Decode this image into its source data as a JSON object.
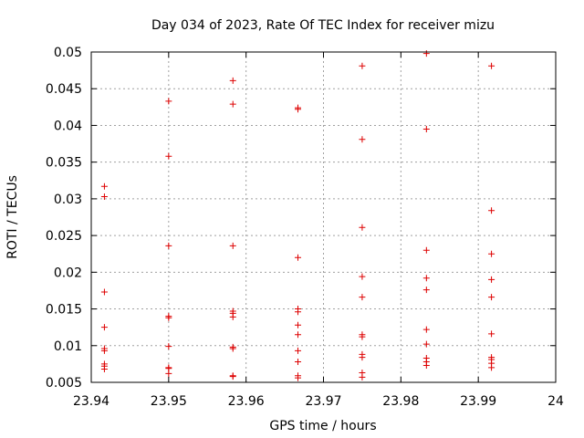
{
  "chart_data": {
    "type": "scatter",
    "title": "Day 034 of 2023, Rate Of TEC Index for receiver mizu",
    "xlabel": "GPS time / hours",
    "ylabel": "ROTI / TECUs",
    "xlim": [
      23.94,
      24.0
    ],
    "ylim": [
      0.005,
      0.05
    ],
    "grid": true,
    "marker": "+",
    "color": "#dd0000",
    "x_tick_labels": [
      "23.94",
      "23.95",
      "23.96",
      "23.97",
      "23.98",
      "23.99",
      "24"
    ],
    "x_ticks": [
      23.94,
      23.95,
      23.96,
      23.97,
      23.98,
      23.99,
      24.0
    ],
    "y_tick_labels": [
      "0.005",
      "0.01",
      "0.015",
      "0.02",
      "0.025",
      "0.03",
      "0.035",
      "0.04",
      "0.045",
      "0.05"
    ],
    "y_ticks": [
      0.005,
      0.01,
      0.015,
      0.02,
      0.025,
      0.03,
      0.035,
      0.04,
      0.045,
      0.05
    ],
    "series": [
      {
        "name": "ROTI",
        "points": [
          [
            23.9417,
            0.0317
          ],
          [
            23.9417,
            0.0303
          ],
          [
            23.9417,
            0.0173
          ],
          [
            23.9417,
            0.0125
          ],
          [
            23.9417,
            0.0096
          ],
          [
            23.9417,
            0.0093
          ],
          [
            23.9417,
            0.0075
          ],
          [
            23.9417,
            0.0072
          ],
          [
            23.9417,
            0.0068
          ],
          [
            23.95,
            0.0433
          ],
          [
            23.95,
            0.0358
          ],
          [
            23.95,
            0.0236
          ],
          [
            23.95,
            0.014
          ],
          [
            23.95,
            0.0138
          ],
          [
            23.95,
            0.0099
          ],
          [
            23.95,
            0.007
          ],
          [
            23.95,
            0.0069
          ],
          [
            23.95,
            0.0062
          ],
          [
            23.9583,
            0.0461
          ],
          [
            23.9583,
            0.0429
          ],
          [
            23.9583,
            0.0236
          ],
          [
            23.9583,
            0.0147
          ],
          [
            23.9583,
            0.0144
          ],
          [
            23.9583,
            0.0139
          ],
          [
            23.9583,
            0.0098
          ],
          [
            23.9583,
            0.0096
          ],
          [
            23.9583,
            0.0059
          ],
          [
            23.9583,
            0.0058
          ],
          [
            23.9667,
            0.0424
          ],
          [
            23.9667,
            0.0422
          ],
          [
            23.9667,
            0.022
          ],
          [
            23.9667,
            0.015
          ],
          [
            23.9667,
            0.0146
          ],
          [
            23.9667,
            0.0128
          ],
          [
            23.9667,
            0.0115
          ],
          [
            23.9667,
            0.0093
          ],
          [
            23.9667,
            0.0078
          ],
          [
            23.9667,
            0.0059
          ],
          [
            23.9667,
            0.0056
          ],
          [
            23.975,
            0.0481
          ],
          [
            23.975,
            0.0381
          ],
          [
            23.975,
            0.0261
          ],
          [
            23.975,
            0.0194
          ],
          [
            23.975,
            0.0166
          ],
          [
            23.975,
            0.0115
          ],
          [
            23.975,
            0.0112
          ],
          [
            23.975,
            0.0088
          ],
          [
            23.975,
            0.0084
          ],
          [
            23.975,
            0.0063
          ],
          [
            23.975,
            0.0057
          ],
          [
            23.9833,
            0.0498
          ],
          [
            23.9833,
            0.0395
          ],
          [
            23.9833,
            0.023
          ],
          [
            23.9833,
            0.0192
          ],
          [
            23.9833,
            0.0176
          ],
          [
            23.9833,
            0.0122
          ],
          [
            23.9833,
            0.0102
          ],
          [
            23.9833,
            0.0083
          ],
          [
            23.9833,
            0.0078
          ],
          [
            23.9833,
            0.0073
          ],
          [
            23.9917,
            0.0481
          ],
          [
            23.9917,
            0.0284
          ],
          [
            23.9917,
            0.0225
          ],
          [
            23.9917,
            0.019
          ],
          [
            23.9917,
            0.0166
          ],
          [
            23.9917,
            0.0116
          ],
          [
            23.9917,
            0.0084
          ],
          [
            23.9917,
            0.0081
          ],
          [
            23.9917,
            0.0076
          ],
          [
            23.9917,
            0.007
          ]
        ]
      }
    ]
  }
}
